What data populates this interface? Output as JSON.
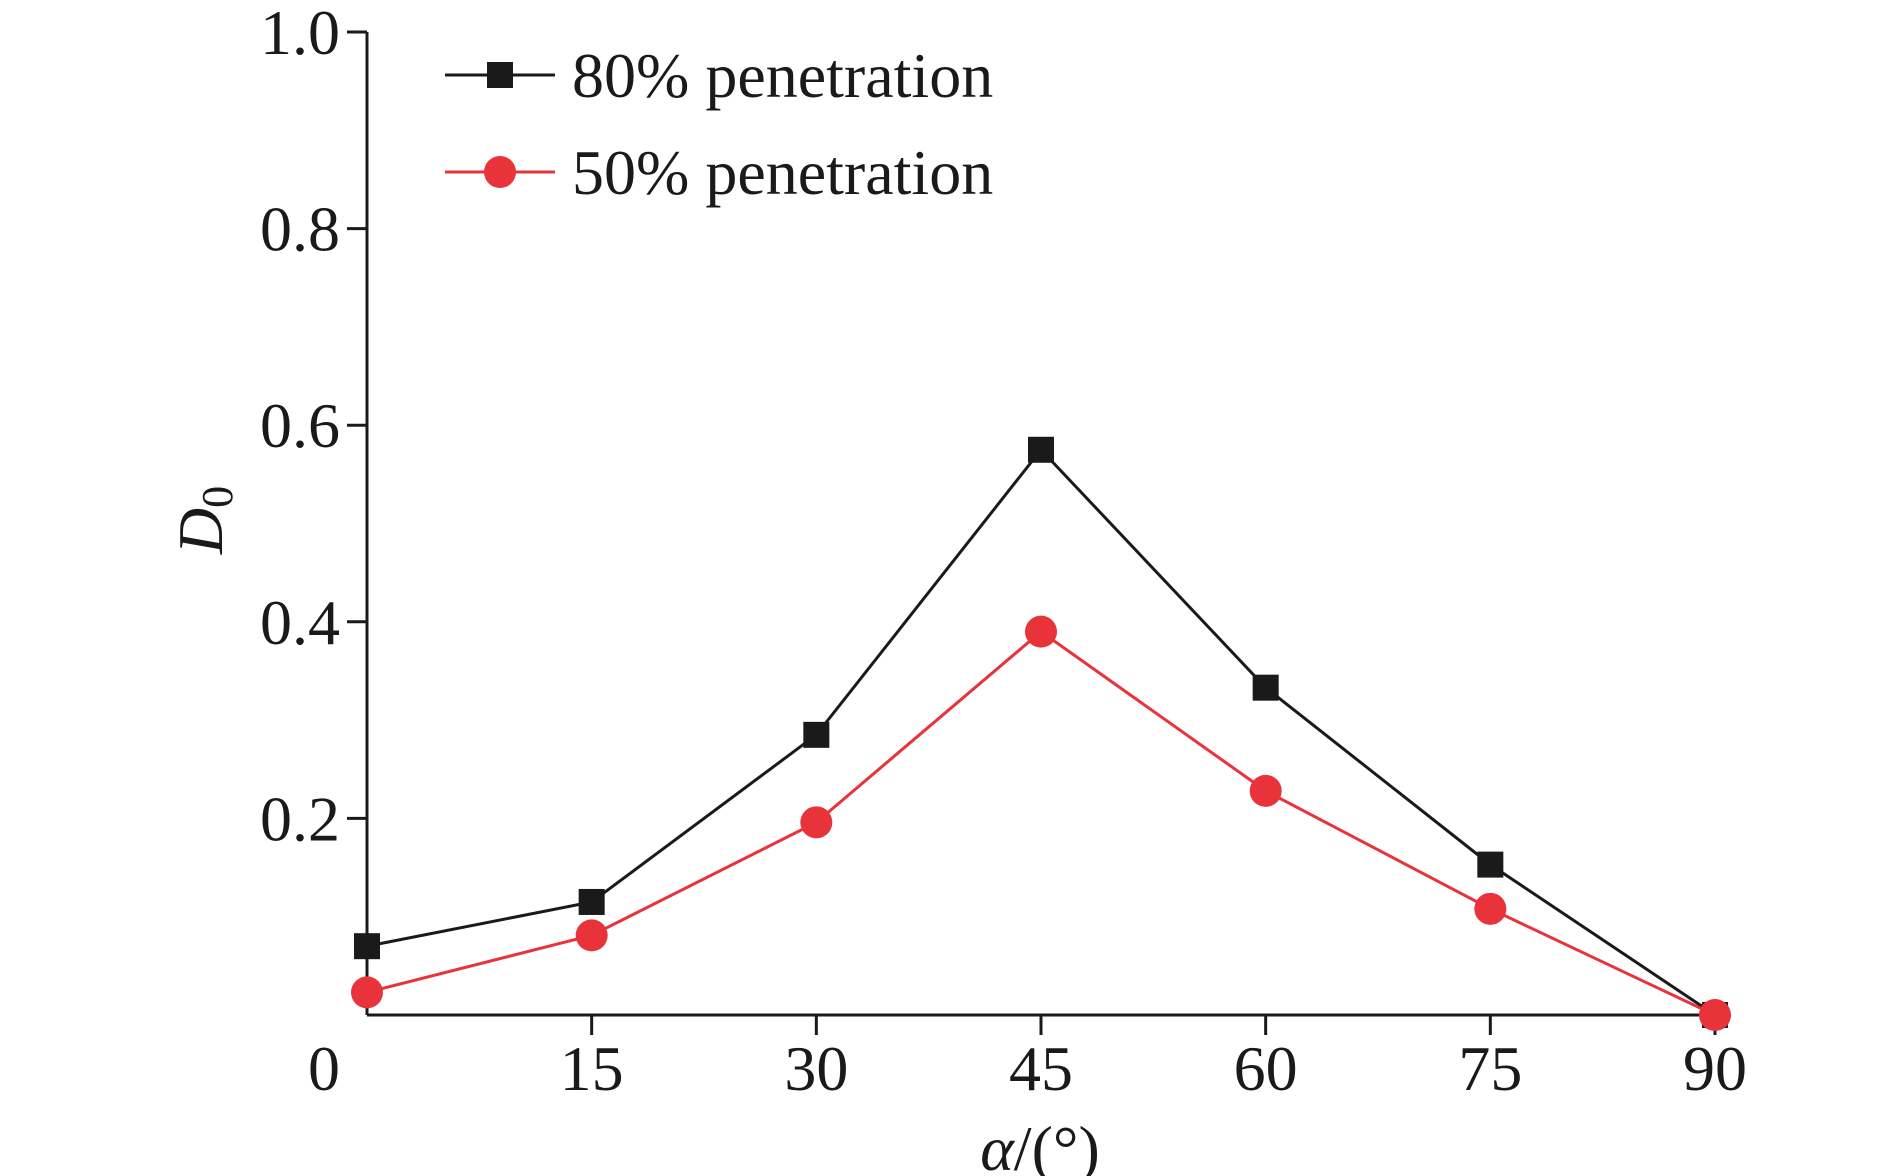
{
  "chart_data": {
    "type": "line",
    "title": "",
    "xlabel": "α/(°)",
    "xlabel_parts": {
      "var": "α",
      "unit": "/(°)"
    },
    "ylabel": "D0",
    "ylabel_parts": {
      "var": "D",
      "sub": "0"
    },
    "x": [
      0,
      15,
      30,
      45,
      60,
      75,
      90
    ],
    "xlim": [
      0,
      90
    ],
    "ylim": [
      0,
      1.0
    ],
    "xticks": [
      "0",
      "15",
      "30",
      "45",
      "60",
      "75",
      "90"
    ],
    "yticks": [
      "0.2",
      "0.4",
      "0.6",
      "0.8",
      "1.0"
    ],
    "grid": false,
    "legend_position": "top-left",
    "series": [
      {
        "name": "80% penetration",
        "color": "#1a1a1a",
        "marker": "square",
        "values": [
          0.07,
          0.115,
          0.285,
          0.575,
          0.333,
          0.153,
          0.0
        ]
      },
      {
        "name": "50% penetration",
        "color": "#e8333a",
        "marker": "circle",
        "values": [
          0.023,
          0.081,
          0.196,
          0.39,
          0.228,
          0.108,
          0.0
        ]
      }
    ]
  }
}
